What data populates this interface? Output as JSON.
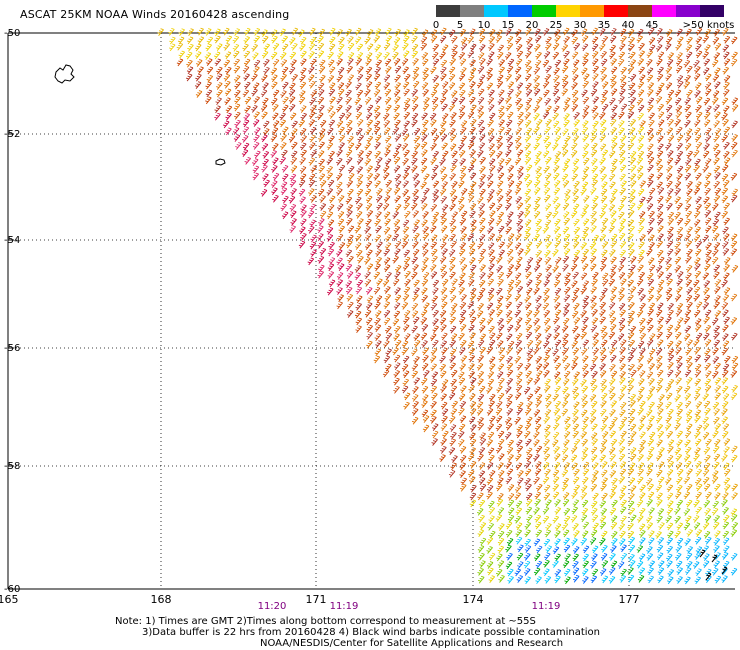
{
  "title": "ASCAT 25KM NOAA Winds 20160428 ascending",
  "colorbar": {
    "colors": [
      "#3c3c3c",
      "#7f7f7f",
      "#00c8ff",
      "#0066ff",
      "#00cc00",
      "#ffd400",
      "#ff9900",
      "#ff0000",
      "#8b4513",
      "#ff00ff",
      "#8800cc",
      "#330066"
    ],
    "labels": [
      "0",
      "5",
      "10",
      "15",
      "20",
      "25",
      "30",
      "35",
      "40",
      "45",
      ">50 knots"
    ]
  },
  "lat_labels": [
    "-50",
    "-52",
    "-54",
    "-56",
    "-58",
    "-60"
  ],
  "lon_labels": [
    "165",
    "168",
    "171",
    "174",
    "177"
  ],
  "time_labels": [
    "11:20",
    "11:19",
    "11:19"
  ],
  "notes": {
    "line1": "Note: 1) Times are GMT 2)Times along bottom correspond to measurement at ~55S",
    "line2": "3)Data buffer is 22 hrs from 20160428 4) Black wind barbs indicate possible contamination",
    "line3": "NOAA/NESDIS/Center for Satellite Applications and Research"
  }
}
